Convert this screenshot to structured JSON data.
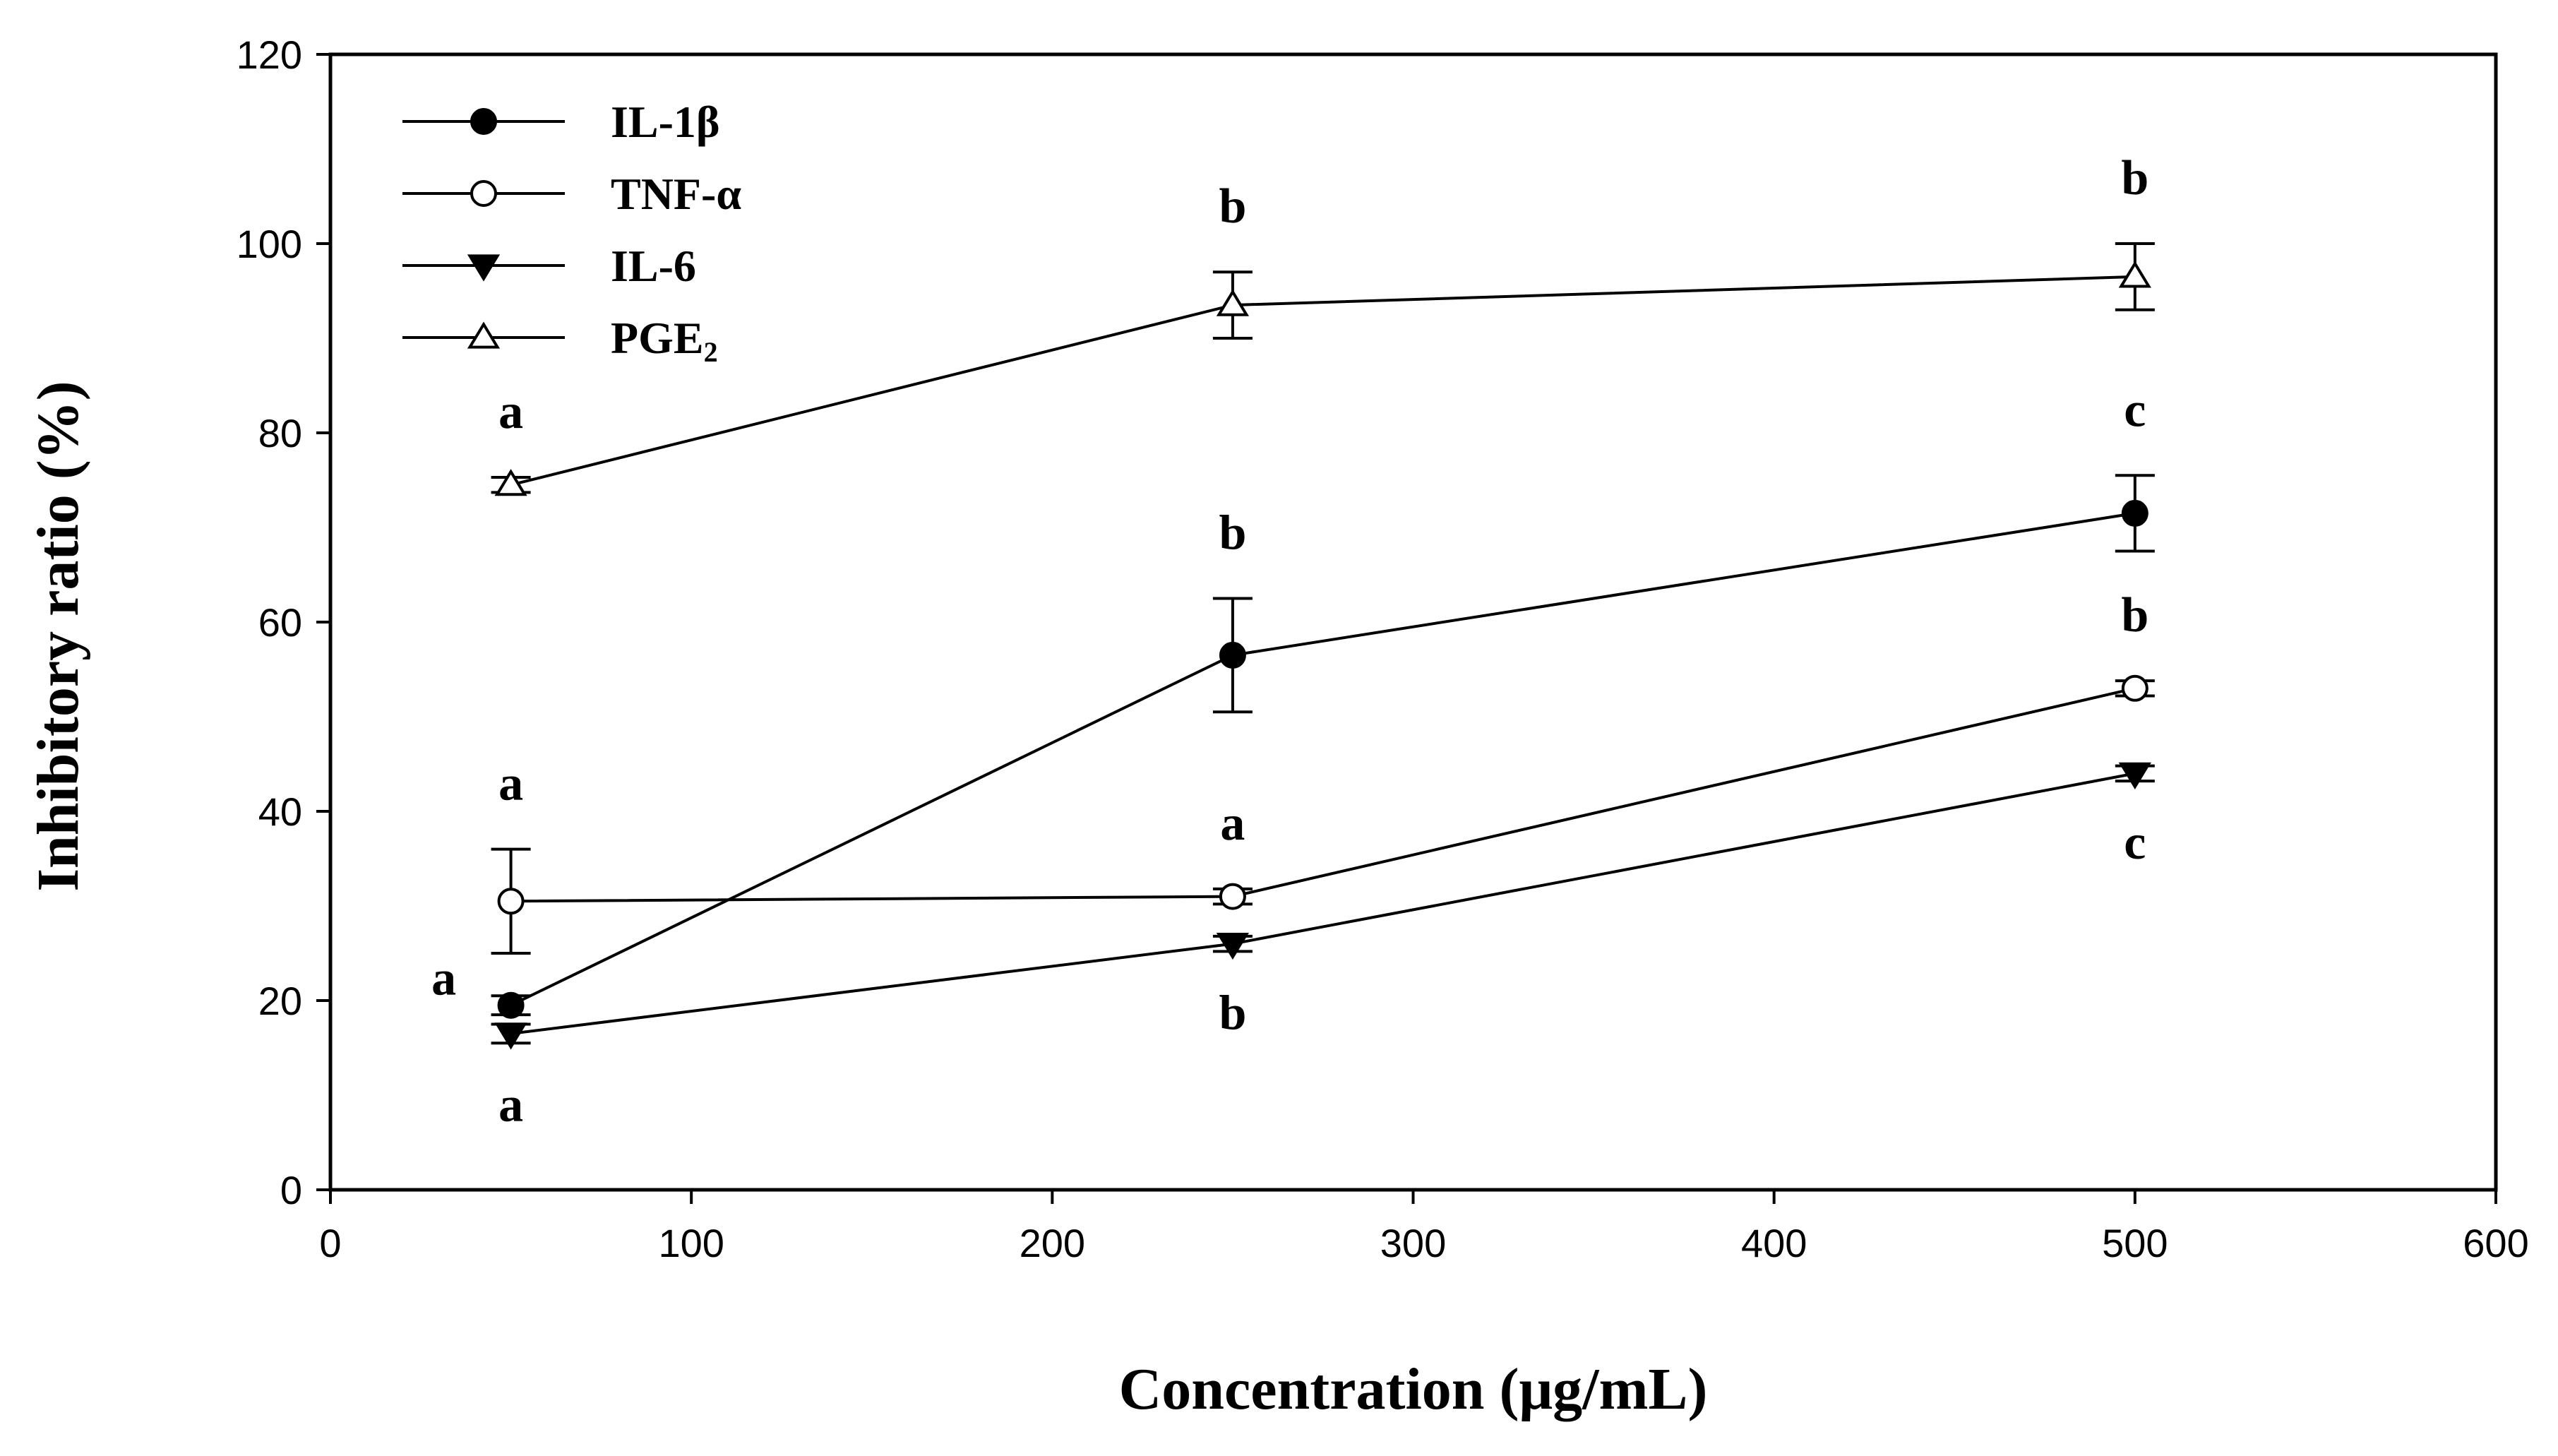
{
  "chart_data": {
    "type": "line",
    "title": "",
    "xlabel": "Concentration (μg/mL)",
    "ylabel": "Inhibitory ratio (%)",
    "xlim": [
      0,
      600
    ],
    "ylim": [
      0,
      120
    ],
    "xticks": [
      0,
      100,
      200,
      300,
      400,
      500,
      600
    ],
    "yticks": [
      0,
      20,
      40,
      60,
      80,
      100,
      120
    ],
    "x": [
      50,
      250,
      500
    ],
    "grid": false,
    "legend_position": "top-left",
    "series": [
      {
        "name": "IL-1β",
        "marker": "filled-circle",
        "values": [
          19.5,
          56.5,
          71.5
        ],
        "errors": [
          1.0,
          6.0,
          4.0
        ],
        "labels": [
          "a",
          "b",
          "c"
        ],
        "label_side": [
          "left",
          "above",
          "above"
        ]
      },
      {
        "name": "TNF-α",
        "marker": "open-circle",
        "values": [
          30.5,
          31.0,
          53.0
        ],
        "errors": [
          5.5,
          0.8,
          0.8
        ],
        "labels": [
          "a",
          "a",
          "b"
        ],
        "label_side": [
          "above",
          "above",
          "above"
        ]
      },
      {
        "name": "IL-6",
        "marker": "filled-triangle-down",
        "values": [
          16.5,
          26.0,
          44.0
        ],
        "errors": [
          1.0,
          0.8,
          0.8
        ],
        "labels": [
          "a",
          "b",
          "c"
        ],
        "label_side": [
          "below",
          "below",
          "below"
        ]
      },
      {
        "name": "PGE",
        "name_subscript": "2",
        "marker": "open-triangle-up",
        "values": [
          74.5,
          93.5,
          96.5
        ],
        "errors": [
          0.8,
          3.5,
          3.5
        ],
        "labels": [
          "a",
          "b",
          "b"
        ],
        "label_side": [
          "above",
          "above",
          "above"
        ]
      }
    ]
  }
}
